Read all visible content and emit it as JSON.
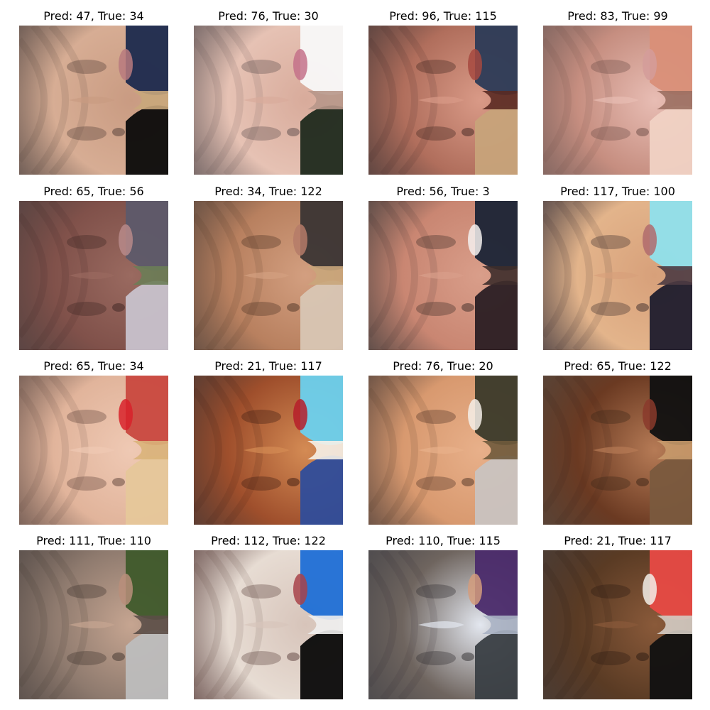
{
  "grid": {
    "rows": 4,
    "cols": 4,
    "items": [
      {
        "title": "Pred: 47, True: 34",
        "palette": {
          "bg": "#d7ad94",
          "mid": "#c99b82",
          "dark": "#4d3a33",
          "accent": "#b97a7e",
          "edge1": "#1c2a4e",
          "edge2": "#0b0b0b",
          "hair": "#c9a77b"
        }
      },
      {
        "title": "Pred: 76, True: 30",
        "palette": {
          "bg": "#e6c2b4",
          "mid": "#d8ab9b",
          "dark": "#5a4a4a",
          "accent": "#c4718a",
          "edge1": "#f8f8f8",
          "edge2": "#1f2a1d",
          "hair": "#b7978a"
        }
      },
      {
        "title": "Pred: 96, True: 115",
        "palette": {
          "bg": "#b06e5c",
          "mid": "#d99a87",
          "dark": "#3c221e",
          "accent": "#a6493f",
          "edge1": "#2c3b57",
          "edge2": "#c7a37a",
          "hair": "#5a2a22"
        }
      },
      {
        "title": "Pred: 83, True: 99",
        "palette": {
          "bg": "#c68e80",
          "mid": "#e8bdb4",
          "dark": "#6a4a44",
          "accent": "#d39c9a",
          "edge1": "#d98f78",
          "edge2": "#f0d2c4",
          "hair": "#9b6f62"
        }
      },
      {
        "title": "Pred: 65, True: 56",
        "palette": {
          "bg": "#80514a",
          "mid": "#9a6a60",
          "dark": "#3b2422",
          "accent": "#b78989",
          "edge1": "#5d5a6a",
          "edge2": "#c8c2cc",
          "hair": "#6c7d56"
        }
      },
      {
        "title": "Pred: 34, True: 122",
        "palette": {
          "bg": "#b8805f",
          "mid": "#d39f80",
          "dark": "#4b3123",
          "accent": "#b57b69",
          "edge1": "#3b3534",
          "edge2": "#d8c6b4",
          "hair": "#c9a67b"
        }
      },
      {
        "title": "Pred: 56, True: 3",
        "palette": {
          "bg": "#c98672",
          "mid": "#d99e8a",
          "dark": "#3a2a26",
          "accent": "#f4f0ee",
          "edge1": "#1b2436",
          "edge2": "#2b1f24",
          "hair": "#3e2e2b"
        }
      },
      {
        "title": "Pred: 117, True: 100",
        "palette": {
          "bg": "#e3b48b",
          "mid": "#d7a07a",
          "dark": "#3a2a2a",
          "accent": "#b06b6d",
          "edge1": "#8fe0ec",
          "edge2": "#1f1c2d",
          "hair": "#4c3b43"
        }
      },
      {
        "title": "Pred: 65, True: 34",
        "palette": {
          "bg": "#e1b49b",
          "mid": "#efc9b4",
          "dark": "#5b4036",
          "accent": "#d8222a",
          "edge1": "#c9483f",
          "edge2": "#e6c79a",
          "hair": "#d9b27a"
        }
      },
      {
        "title": "Pred: 21, True: 117",
        "palette": {
          "bg": "#9f4f2c",
          "mid": "#d48b54",
          "dark": "#3a1a10",
          "accent": "#b61f2a",
          "edge1": "#6bd1ee",
          "edge2": "#2f4d9b",
          "hair": "#f6f1e8"
        }
      },
      {
        "title": "Pred: 76, True: 20",
        "palette": {
          "bg": "#d8996f",
          "mid": "#e8b08a",
          "dark": "#4a2f22",
          "accent": "#f4eee8",
          "edge1": "#3b3a2a",
          "edge2": "#c9c3c0",
          "hair": "#6f5a3c"
        }
      },
      {
        "title": "Pred: 65, True: 122",
        "palette": {
          "bg": "#6b3a22",
          "mid": "#b67b56",
          "dark": "#3a2416",
          "accent": "#8a3a2c",
          "edge1": "#111111",
          "edge2": "#7a5a3e",
          "hair": "#c89a6c"
        }
      },
      {
        "title": "Pred: 111, True: 110",
        "palette": {
          "bg": "#8e7a6e",
          "mid": "#c6a591",
          "dark": "#3d312c",
          "accent": "#b98e7a",
          "edge1": "#3f5a2b",
          "edge2": "#bdbdbd",
          "hair": "#5b4e47"
        }
      },
      {
        "title": "Pred: 112, True: 122",
        "palette": {
          "bg": "#e7dcd3",
          "mid": "#d7c4ba",
          "dark": "#5a3e3a",
          "accent": "#a8434a",
          "edge1": "#1f6fd6",
          "edge2": "#0a0a0a",
          "hair": "#eeeeee"
        }
      },
      {
        "title": "Pred: 110, True: 115",
        "palette": {
          "bg": "#6f655f",
          "mid": "#e3e7ef",
          "dark": "#2e2b2e",
          "accent": "#d49c7c",
          "edge1": "#4b2b6b",
          "edge2": "#3a3f44",
          "hair": "#aab3c4"
        }
      },
      {
        "title": "Pred: 21, True: 117",
        "palette": {
          "bg": "#5a3b24",
          "mid": "#8a5a3a",
          "dark": "#2a1a12",
          "accent": "#f2eee9",
          "edge1": "#e74a44",
          "edge2": "#111111",
          "hair": "#d4ccc4"
        }
      }
    ]
  }
}
